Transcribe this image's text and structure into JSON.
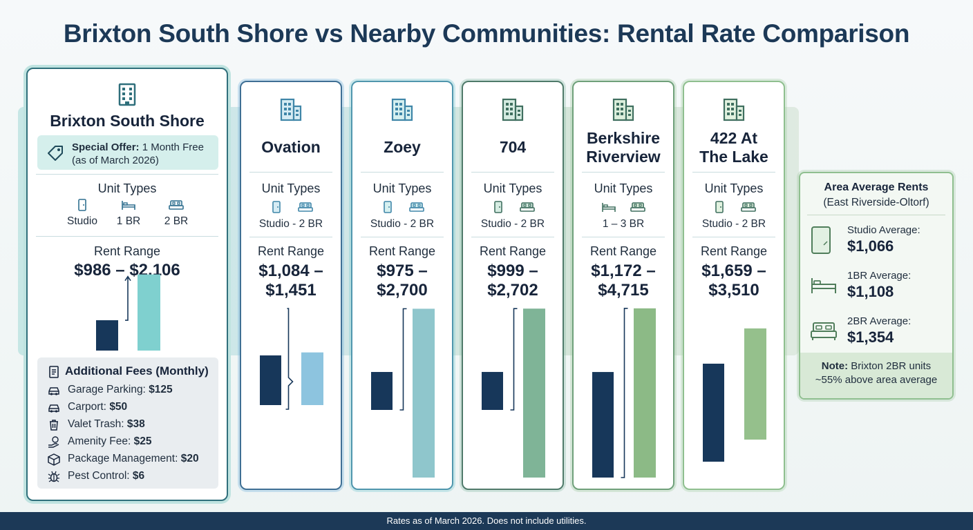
{
  "title": "Brixton South Shore vs Nearby Communities: Rental Rate Comparison",
  "colors": {
    "dark_bar": "#17375a",
    "brixton_bar": "#7fd0cf",
    "ovation_bar": "#8dc4df",
    "zoey_bar": "#8fc6cc",
    "c704_bar": "#7fb497",
    "berkshire_bar": "#8cba86",
    "lake_bar": "#95c08c"
  },
  "labels": {
    "unit_types": "Unit Types",
    "rent_range": "Rent Range"
  },
  "brixton": {
    "name": "Brixton South Shore",
    "offer_label": "Special Offer:",
    "offer_text": "1 Month Free",
    "offer_date": "(as of March 2026)",
    "units": [
      "Studio",
      "1 BR",
      "2 BR"
    ],
    "rent_range": "$986 – $2,106",
    "fees_title": "Additional Fees (Monthly)",
    "fees": [
      {
        "label": "Garage Parking:",
        "value": "$125",
        "icon": "car-icon"
      },
      {
        "label": "Carport:",
        "value": "$50",
        "icon": "car-icon"
      },
      {
        "label": "Valet Trash:",
        "value": "$38",
        "icon": "trash-icon"
      },
      {
        "label": "Amenity Fee:",
        "value": "$25",
        "icon": "money-hand-icon"
      },
      {
        "label": "Package Management:",
        "value": "$20",
        "icon": "package-icon"
      },
      {
        "label": "Pest Control:",
        "value": "$6",
        "icon": "bug-icon"
      }
    ]
  },
  "communities": [
    {
      "name_line1": "Ovation",
      "name_line2": "",
      "units": "Studio - 2 BR",
      "rent_line1": "$1,084 –",
      "rent_line2": "$1,451"
    },
    {
      "name_line1": "Zoey",
      "name_line2": "",
      "units": "Studio - 2 BR",
      "rent_line1": "$975 –",
      "rent_line2": "$2,700"
    },
    {
      "name_line1": "704",
      "name_line2": "",
      "units": "Studio - 2 BR",
      "rent_line1": "$999 –",
      "rent_line2": "$2,702"
    },
    {
      "name_line1": "Berkshire",
      "name_line2": "Riverview",
      "units": "1 – 3 BR",
      "rent_line1": "$1,172 –",
      "rent_line2": "$4,715"
    },
    {
      "name_line1": "422 At",
      "name_line2": "The Lake",
      "units": "Studio - 2 BR",
      "rent_line1": "$1,659 –",
      "rent_line2": "$3,510"
    }
  ],
  "area_average": {
    "title": "Area Average Rents",
    "subtitle": "(East Riverside-Oltorf)",
    "items": [
      {
        "label": "Studio Average:",
        "value": "$1,066"
      },
      {
        "label": "1BR Average:",
        "value": "$1,108"
      },
      {
        "label": "2BR Average:",
        "value": "$1,354"
      }
    ],
    "note_bold": "Note:",
    "note_text": "Brixton 2BR units",
    "note_line2": "~55% above area average"
  },
  "footer": "Rates as of March 2026. Does not include utilities.",
  "chart_data": {
    "type": "bar",
    "title": "Rent Range",
    "categories": [
      "Brixton South Shore",
      "Ovation",
      "Zoey",
      "704",
      "Berkshire Riverview",
      "422 At The Lake"
    ],
    "series": [
      {
        "values": [
          986,
          1084,
          975,
          999,
          1172,
          1659
        ]
      },
      {
        "values": [
          2106,
          1451,
          2700,
          2702,
          4715,
          3510
        ]
      }
    ]
  }
}
